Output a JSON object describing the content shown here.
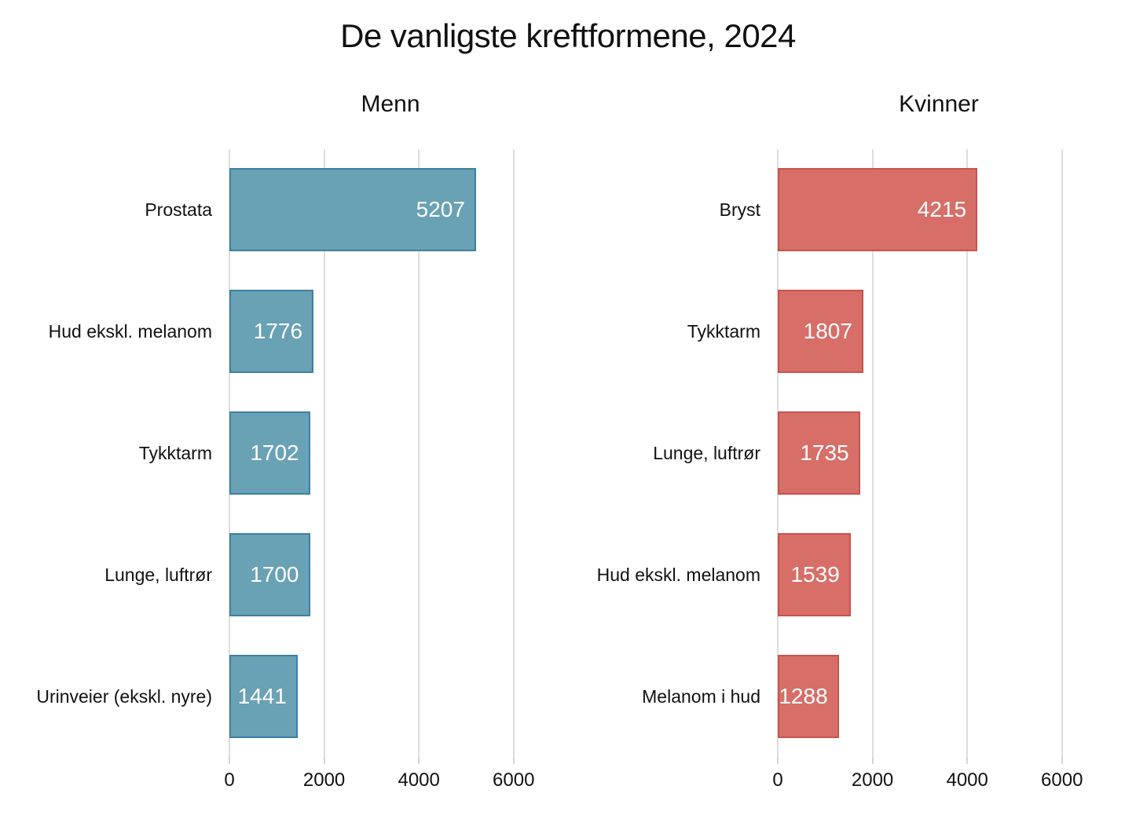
{
  "title": "De vanligste kreftformene, 2024",
  "colors": {
    "background": "#ffffff",
    "text": "#111111",
    "gridline": "#dddddd",
    "axis_tick": "#d4d4d4",
    "men_bar_fill": "#69a1b5",
    "men_bar_border": "#3e7fa3",
    "women_bar_fill": "#d76e68",
    "women_bar_border": "#c9524d",
    "value_label": "#ffffff"
  },
  "chart_data": [
    {
      "type": "bar",
      "orientation": "horizontal",
      "title": "Menn",
      "categories": [
        "Prostata",
        "Hud ekskl. melanom",
        "Tykktarm",
        "Lunge, luftrør",
        "Urinveier (ekskl. nyre)"
      ],
      "values": [
        5207,
        1776,
        1702,
        1700,
        1441
      ],
      "xlim": [
        0,
        6800
      ],
      "xticks": [
        0,
        2000,
        4000,
        6000
      ],
      "grid": true,
      "legend": "none",
      "value_labels_position": "inside-end",
      "bar_color": "#69a1b5",
      "bar_border_color": "#3e7fa3"
    },
    {
      "type": "bar",
      "orientation": "horizontal",
      "title": "Kvinner",
      "categories": [
        "Bryst",
        "Tykktarm",
        "Lunge, luftrør",
        "Hud ekskl. melanom",
        "Melanom i hud"
      ],
      "values": [
        4215,
        1807,
        1735,
        1539,
        1288
      ],
      "xlim": [
        0,
        6800
      ],
      "xticks": [
        0,
        2000,
        4000,
        6000
      ],
      "grid": true,
      "legend": "none",
      "value_labels_position": "inside-end",
      "bar_color": "#d76e68",
      "bar_border_color": "#c9524d"
    }
  ]
}
